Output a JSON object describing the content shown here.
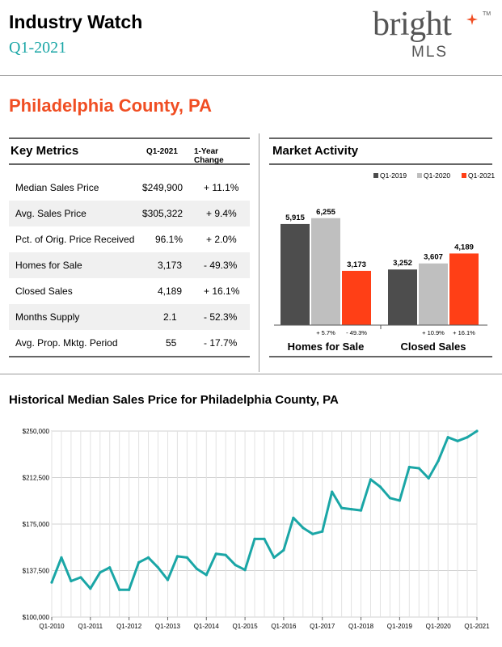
{
  "header": {
    "title": "Industry Watch",
    "period": "Q1-2021",
    "logo_word": "bright",
    "logo_sub": "MLS",
    "logo_tm": "TM"
  },
  "county_title": "Philadelphia County, PA",
  "key_metrics": {
    "title": "Key Metrics",
    "col_current": "Q1-2021",
    "col_change": "1-Year Change",
    "rows": [
      {
        "label": "Median Sales Price",
        "value": "$249,900",
        "change": "+ 11.1%"
      },
      {
        "label": "Avg. Sales Price",
        "value": "$305,322",
        "change": "+ 9.4%"
      },
      {
        "label": "Pct. of Orig. Price Received",
        "value": "96.1%",
        "change": "+ 2.0%"
      },
      {
        "label": "Homes for Sale",
        "value": "3,173",
        "change": "- 49.3%"
      },
      {
        "label": "Closed Sales",
        "value": "4,189",
        "change": "+ 16.1%"
      },
      {
        "label": "Months Supply",
        "value": "2.1",
        "change": "- 52.3%"
      },
      {
        "label": "Avg. Prop. Mktg. Period",
        "value": "55",
        "change": "- 17.7%"
      }
    ]
  },
  "market_activity_title": "Market Activity",
  "colors": {
    "accent_orange": "#f04e23",
    "teal": "#1aa6a6",
    "q1_2019": "#4d4d4d",
    "q1_2020": "#bfbfbf",
    "q1_2021": "#ff3f16"
  },
  "chart_data": [
    {
      "type": "bar",
      "title": "Market Activity",
      "categories": [
        "Homes for Sale",
        "Closed Sales"
      ],
      "series": [
        {
          "name": "Q1-2019",
          "values": [
            5915,
            3252
          ],
          "labels": [
            "5,915",
            "3,252"
          ]
        },
        {
          "name": "Q1-2020",
          "values": [
            6255,
            3607
          ],
          "labels": [
            "6,255",
            "3,607"
          ]
        },
        {
          "name": "Q1-2021",
          "values": [
            3173,
            4189
          ],
          "labels": [
            "3,173",
            "4,189"
          ]
        }
      ],
      "change_labels": [
        [
          "+ 5.7%",
          "- 49.3%"
        ],
        [
          "+ 10.9%",
          "+ 16.1%"
        ]
      ],
      "ylim": [
        0,
        7000
      ],
      "legend_position": "top-right",
      "grid": false
    },
    {
      "type": "line",
      "title": "Historical Median Sales Price for Philadelphia County, PA",
      "ylim": [
        100000,
        250000
      ],
      "y_ticks": [
        100000,
        137500,
        175000,
        212500,
        250000
      ],
      "y_tick_labels": [
        "$100,000",
        "$137,500",
        "$175,000",
        "$212,500",
        "$250,000"
      ],
      "x_tick_labels": [
        "Q1-2010",
        "Q1-2011",
        "Q1-2012",
        "Q1-2013",
        "Q1-2014",
        "Q1-2015",
        "Q1-2016",
        "Q1-2017",
        "Q1-2018",
        "Q1-2019",
        "Q1-2020",
        "Q1-2021"
      ],
      "series": [
        {
          "values": [
            128000,
            148000,
            129000,
            132000,
            123000,
            136000,
            140000,
            122000,
            122000,
            144000,
            148000,
            140000,
            130000,
            149000,
            148000,
            139000,
            134000,
            151000,
            150000,
            142000,
            138000,
            163000,
            163000,
            148000,
            154000,
            180000,
            172000,
            167000,
            169000,
            201000,
            188000,
            187000,
            186000,
            211000,
            205000,
            196000,
            194000,
            221000,
            220000,
            212000,
            226000,
            245000,
            242000,
            245000,
            250000
          ]
        }
      ],
      "grid": true
    }
  ]
}
